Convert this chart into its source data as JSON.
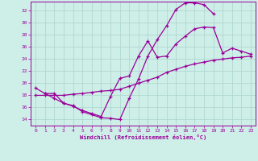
{
  "xlabel": "Windchill (Refroidissement éolien,°C)",
  "xlim": [
    -0.5,
    23.5
  ],
  "ylim": [
    13,
    33.5
  ],
  "yticks": [
    14,
    16,
    18,
    20,
    22,
    24,
    26,
    28,
    30,
    32
  ],
  "xticks": [
    0,
    1,
    2,
    3,
    4,
    5,
    6,
    7,
    8,
    9,
    10,
    11,
    12,
    13,
    14,
    15,
    16,
    17,
    18,
    19,
    20,
    21,
    22,
    23
  ],
  "bg_color": "#ceeee8",
  "line_color": "#990099",
  "grid_color": "#aad4cc",
  "curve1_x": [
    0,
    1,
    2,
    3,
    4,
    5,
    6,
    7,
    8,
    9,
    10,
    11,
    12,
    13,
    14,
    15,
    16,
    17,
    18,
    19
  ],
  "curve1_y": [
    19.2,
    18.3,
    18.3,
    16.7,
    16.3,
    15.3,
    14.8,
    14.3,
    14.2,
    14.0,
    17.5,
    20.7,
    24.5,
    27.2,
    29.5,
    32.2,
    33.3,
    33.3,
    33.0,
    31.5
  ],
  "curve2_x": [
    0,
    1,
    2,
    3,
    4,
    5,
    6,
    7,
    8,
    9,
    10,
    11,
    12,
    13,
    14,
    15,
    16,
    17,
    18,
    19,
    20,
    21,
    22,
    23
  ],
  "curve2_y": [
    18.0,
    18.0,
    18.0,
    18.0,
    18.2,
    18.3,
    18.5,
    18.7,
    18.8,
    19.0,
    19.5,
    20.0,
    20.5,
    21.0,
    21.8,
    22.3,
    22.8,
    23.2,
    23.5,
    23.8,
    24.0,
    24.2,
    24.3,
    24.5
  ],
  "curve3_x": [
    1,
    2,
    3,
    4,
    5,
    6,
    7,
    8,
    9,
    10,
    11,
    12,
    13,
    14,
    15,
    16,
    17,
    18,
    19,
    20,
    21,
    22,
    23
  ],
  "curve3_y": [
    18.3,
    17.5,
    16.7,
    16.2,
    15.5,
    15.0,
    14.5,
    17.8,
    20.8,
    21.2,
    24.5,
    27.0,
    24.3,
    24.5,
    26.5,
    27.8,
    29.0,
    29.3,
    29.2,
    25.0,
    25.8,
    25.3,
    24.8
  ]
}
